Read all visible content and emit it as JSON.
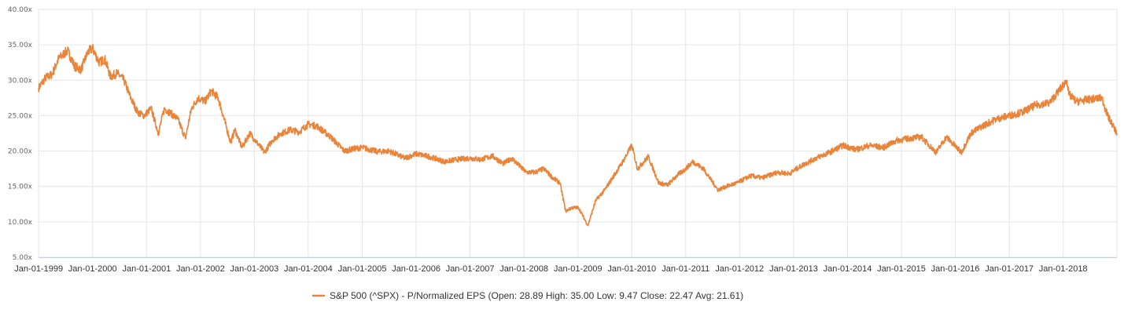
{
  "chart_data": {
    "type": "line",
    "title": "",
    "xlabel": "",
    "ylabel": "",
    "ylim": [
      5,
      40
    ],
    "y_ticks": [
      "5.00x",
      "10.00x",
      "15.00x",
      "20.00x",
      "25.00x",
      "30.00x",
      "35.00x",
      "40.00x"
    ],
    "x_ticks": [
      "Jan-01-1999",
      "Jan-01-2000",
      "Jan-01-2001",
      "Jan-01-2002",
      "Jan-01-2003",
      "Jan-01-2004",
      "Jan-01-2005",
      "Jan-01-2006",
      "Jan-01-2007",
      "Jan-01-2008",
      "Jan-01-2009",
      "Jan-01-2010",
      "Jan-01-2011",
      "Jan-01-2012",
      "Jan-01-2013",
      "Jan-01-2014",
      "Jan-01-2015",
      "Jan-01-2016",
      "Jan-01-2017",
      "Jan-01-2018"
    ],
    "grid": true,
    "legend_position": "bottom-center",
    "series": [
      {
        "name": "S&P 500 (^SPX) - P/Normalized EPS (Open: 28.89 High: 35.00 Low: 9.47 Close: 22.47 Avg: 21.61)",
        "color": "#e8853a",
        "x": [
          "1998-12-31",
          "1999-02-15",
          "1999-04-01",
          "1999-05-15",
          "1999-07-15",
          "1999-09-01",
          "1999-10-15",
          "1999-12-01",
          "2000-01-01",
          "2000-02-15",
          "2000-03-24",
          "2000-05-01",
          "2000-06-15",
          "2000-08-01",
          "2000-09-15",
          "2000-11-01",
          "2000-12-15",
          "2001-02-01",
          "2001-03-22",
          "2001-05-01",
          "2001-06-15",
          "2001-08-01",
          "2001-09-21",
          "2001-11-01",
          "2001-12-15",
          "2002-02-01",
          "2002-03-15",
          "2002-05-01",
          "2002-07-24",
          "2002-08-22",
          "2002-10-09",
          "2002-12-01",
          "2003-03-11",
          "2003-05-01",
          "2003-07-01",
          "2003-09-01",
          "2003-11-01",
          "2004-01-01",
          "2004-03-01",
          "2004-06-01",
          "2004-09-01",
          "2004-11-01",
          "2005-01-01",
          "2005-04-15",
          "2005-07-01",
          "2005-10-15",
          "2006-01-01",
          "2006-04-01",
          "2006-07-15",
          "2006-10-01",
          "2007-01-01",
          "2007-03-15",
          "2007-06-01",
          "2007-08-15",
          "2007-10-10",
          "2008-01-15",
          "2008-03-15",
          "2008-05-15",
          "2008-07-15",
          "2008-09-01",
          "2008-10-10",
          "2008-11-20",
          "2009-01-06",
          "2009-03-09",
          "2009-05-01",
          "2009-07-01",
          "2009-09-01",
          "2009-11-01",
          "2010-01-01",
          "2010-02-08",
          "2010-04-23",
          "2010-07-02",
          "2010-09-01",
          "2010-11-01",
          "2011-01-01",
          "2011-02-18",
          "2011-05-01",
          "2011-08-08",
          "2011-10-03",
          "2011-12-15",
          "2012-03-15",
          "2012-06-01",
          "2012-09-15",
          "2012-12-01",
          "2013-03-01",
          "2013-06-01",
          "2013-09-01",
          "2013-12-01",
          "2014-03-01",
          "2014-06-01",
          "2014-09-01",
          "2014-12-01",
          "2015-03-01",
          "2015-05-15",
          "2015-08-25",
          "2015-11-01",
          "2016-02-11",
          "2016-04-15",
          "2016-07-01",
          "2016-10-01",
          "2017-01-01",
          "2017-04-01",
          "2017-07-01",
          "2017-10-01",
          "2018-01-26",
          "2018-02-08",
          "2018-04-01",
          "2018-07-01",
          "2018-09-20",
          "2018-10-29",
          "2018-12-24",
          "2018-12-31"
        ],
        "values": [
          28.89,
          30.3,
          30.8,
          33.0,
          34.2,
          32.0,
          31.5,
          34.0,
          34.5,
          32.5,
          33.0,
          30.5,
          31.0,
          30.0,
          27.5,
          25.5,
          25.0,
          26.0,
          22.5,
          26.0,
          25.3,
          24.5,
          21.8,
          26.0,
          27.5,
          27.0,
          28.5,
          27.5,
          21.2,
          23.0,
          20.5,
          22.5,
          19.8,
          21.5,
          22.5,
          23.0,
          22.7,
          23.8,
          23.5,
          22.0,
          20.0,
          20.3,
          20.5,
          19.9,
          20.0,
          19.0,
          19.6,
          19.2,
          18.5,
          18.8,
          19.0,
          18.8,
          19.3,
          18.2,
          19.0,
          17.0,
          17.0,
          17.5,
          16.2,
          15.5,
          11.5,
          12.0,
          12.0,
          9.47,
          13.0,
          14.5,
          16.5,
          18.5,
          20.8,
          17.5,
          19.2,
          15.5,
          15.2,
          16.5,
          17.5,
          18.5,
          17.5,
          14.5,
          15.0,
          15.5,
          16.5,
          16.2,
          17.0,
          16.8,
          18.0,
          19.0,
          19.8,
          20.8,
          20.2,
          20.8,
          20.5,
          21.5,
          21.8,
          22.0,
          19.8,
          22.0,
          19.8,
          22.5,
          23.5,
          24.5,
          25.0,
          25.5,
          26.5,
          26.8,
          30.0,
          28.0,
          27.0,
          27.3,
          27.5,
          25.0,
          22.8,
          22.47
        ]
      }
    ]
  }
}
